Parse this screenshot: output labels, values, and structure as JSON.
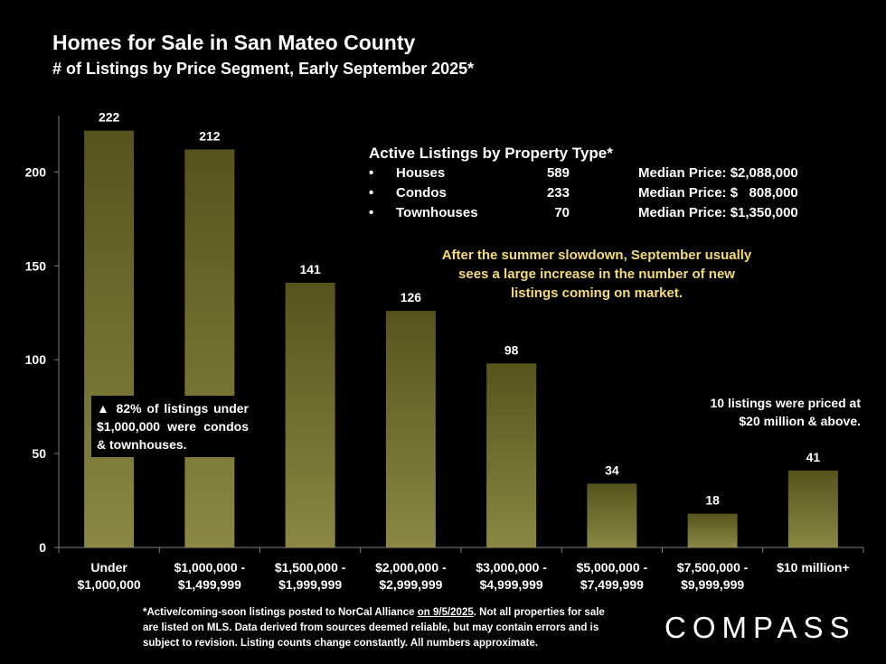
{
  "title": "Homes for Sale in San Mateo County",
  "subtitle": "# of Listings by Price Segment, Early September 2025*",
  "chart_data": {
    "type": "bar",
    "categories": [
      [
        "Under",
        "$1,000,000"
      ],
      [
        "$1,000,000 -",
        "$1,499,999"
      ],
      [
        "$1,500,000 -",
        "$1,999,999"
      ],
      [
        "$2,000,000 -",
        "$2,999,999"
      ],
      [
        "$3,000,000 -",
        "$4,999,999"
      ],
      [
        "$5,000,000 -",
        "$7,499,999"
      ],
      [
        "$7,500,000 -",
        "$9,999,999"
      ],
      [
        "$10 million+"
      ]
    ],
    "values": [
      222,
      212,
      141,
      126,
      98,
      34,
      18,
      41
    ],
    "value_labels": [
      "222",
      "212",
      "141",
      "126",
      "98",
      "34",
      "18",
      "41"
    ],
    "yticks": [
      0,
      50,
      100,
      150,
      200
    ],
    "ytick_labels": [
      "0",
      "50",
      "100",
      "150",
      "200"
    ],
    "ylim": [
      0,
      230
    ],
    "bar_color_top": "#56541c",
    "bar_color_bottom": "#8a8844",
    "grid": false
  },
  "property_types": {
    "title": "Active Listings by Property Type*",
    "bullet": "•",
    "rows": [
      {
        "name": "Houses",
        "count": "589",
        "median": "Median Price: $2,088,000"
      },
      {
        "name": "Condos",
        "count": "233",
        "median": "Median Price: $   808,000"
      },
      {
        "name": "Townhouses",
        "count": "70",
        "median": "Median Price: $1,350,000"
      }
    ]
  },
  "notes": {
    "september": "After the summer slowdown, September usually sees a large increase in the number of new listings coming on market.",
    "condos": "▲  82%  of  listings under $1,000,000 were condos & townhouses.",
    "twenty_million": "10  listings  were  priced at $20 million & above."
  },
  "footnote": {
    "part1": "*Active/coming-soon listings posted to NorCal Alliance ",
    "date": "on 9/5/2025",
    "part2": ". Not all properties for sale are listed on MLS.  Data derived from sources deemed reliable, but may contain errors and is subject to revision. Listing counts change constantly. All numbers approximate."
  },
  "logo": "COMPASS",
  "colors": {
    "background": "#000000",
    "note_yellow": "#f5dc72",
    "axis": "#7f7f7f"
  }
}
